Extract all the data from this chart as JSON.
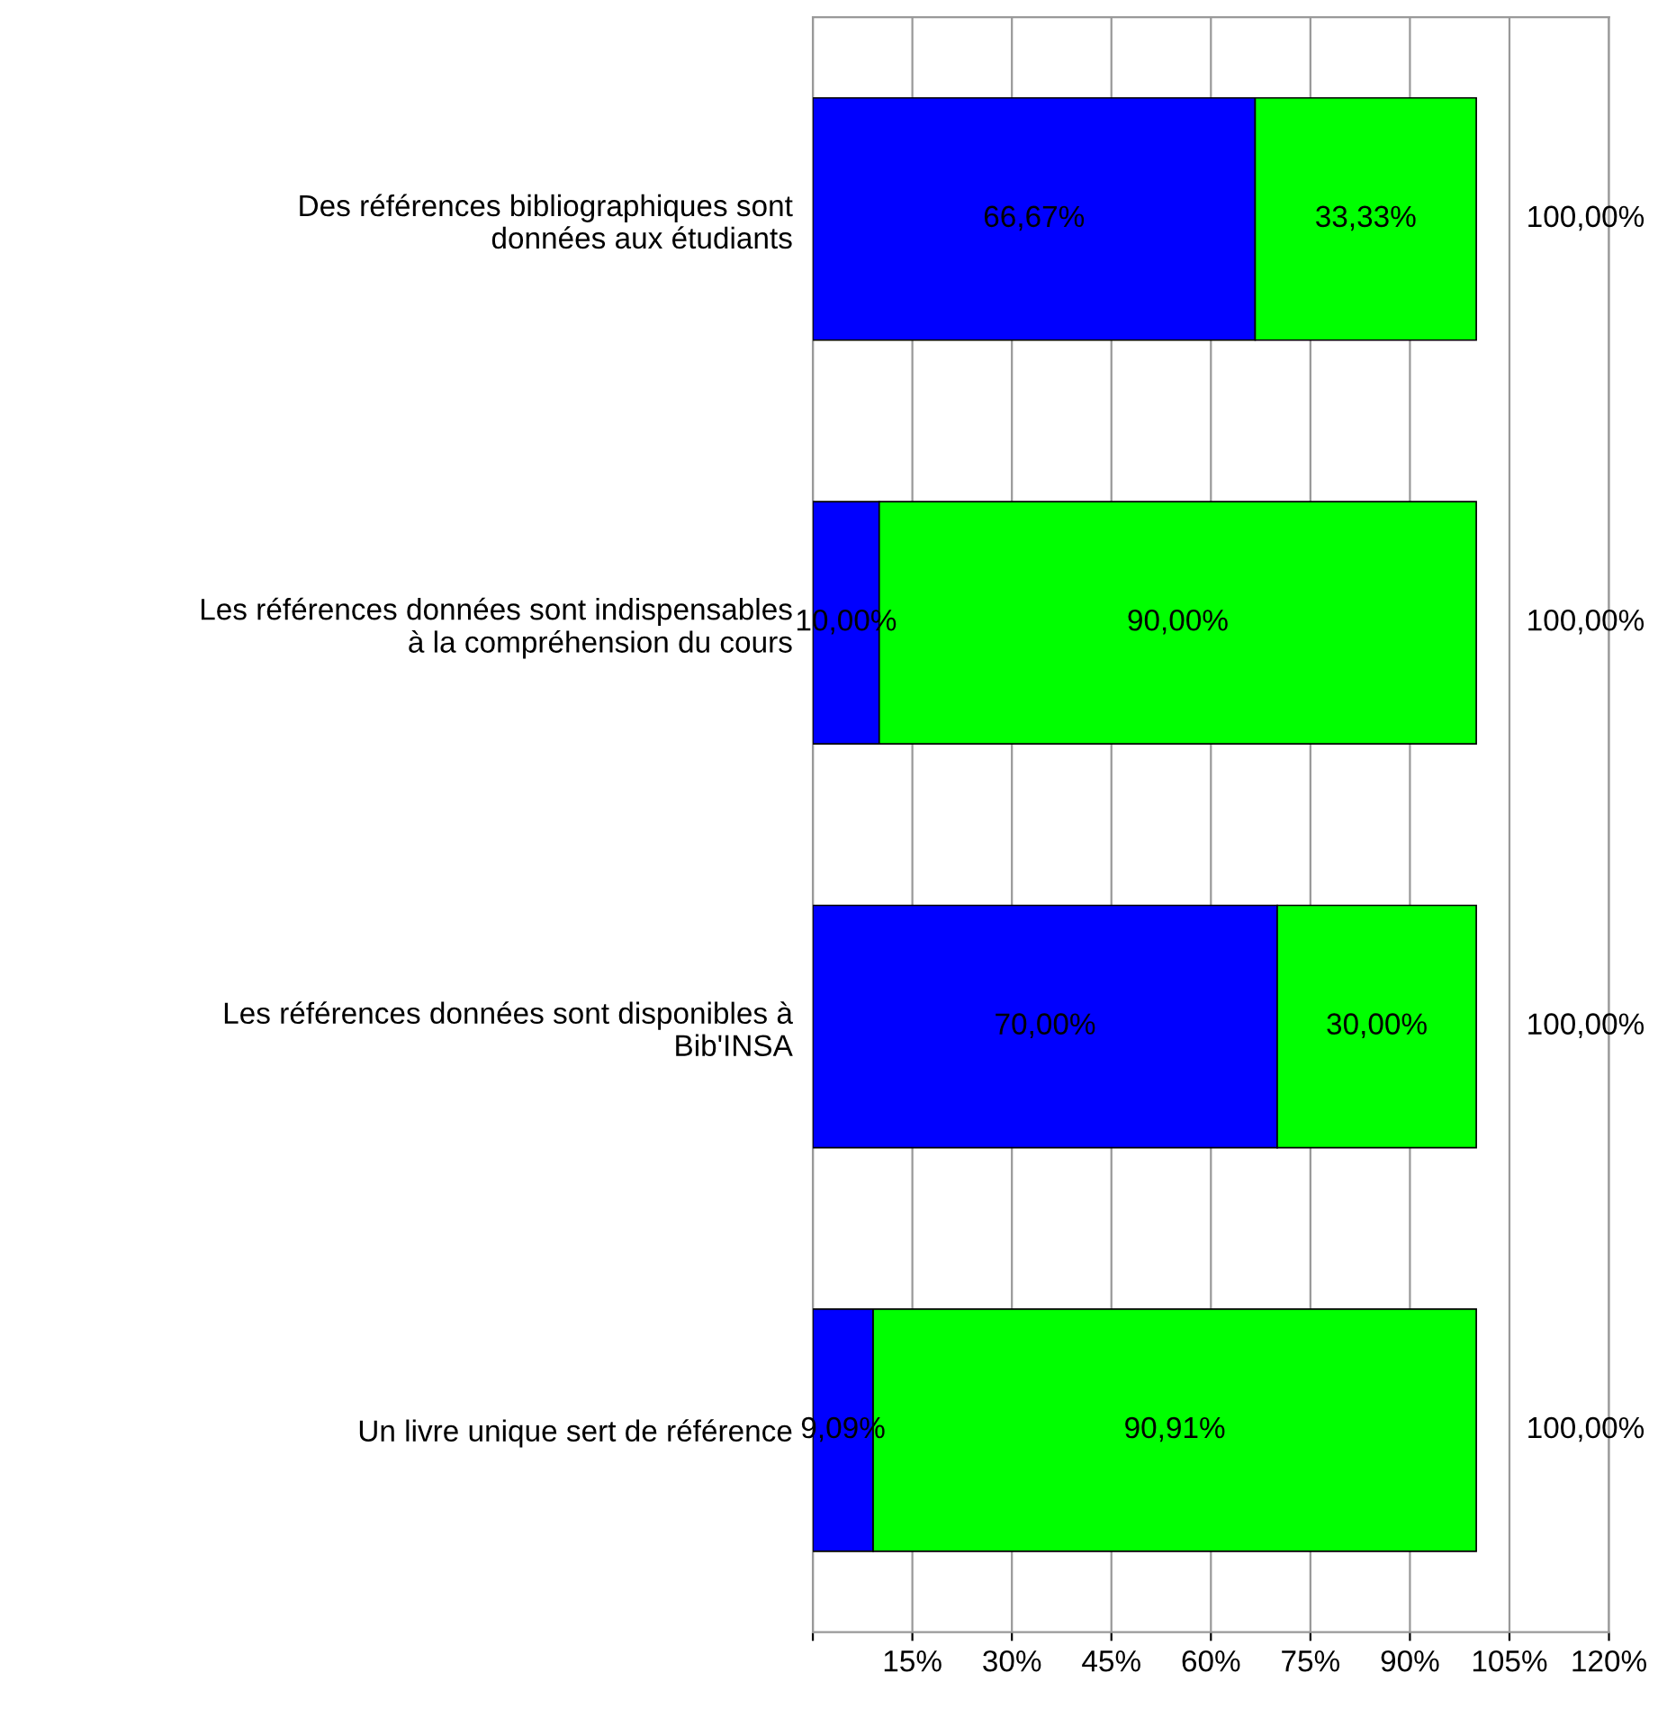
{
  "chart_data": {
    "type": "bar",
    "orientation": "horizontal",
    "stacked": true,
    "categories": [
      "Des références bibliographiques sont\ndonnées aux étudiants",
      "Les références données sont indispensables\nà la compréhension du cours",
      "Les références données sont disponibles à\nBib'INSA",
      "Un livre unique sert de référence"
    ],
    "series": [
      {
        "color": "#0000ff",
        "values": [
          66.67,
          10.0,
          70.0,
          9.09
        ],
        "value_labels": [
          "66,67%",
          "10,00%",
          "70,00%",
          "9,09%"
        ]
      },
      {
        "color": "#00ff00",
        "values": [
          33.33,
          90.0,
          30.0,
          90.91
        ],
        "value_labels": [
          "33,33%",
          "90,00%",
          "30,00%",
          "90,91%"
        ]
      }
    ],
    "totals": [
      "100,00%",
      "100,00%",
      "100,00%",
      "100,00%"
    ],
    "xlim": [
      0,
      120
    ],
    "xticks": [
      {
        "value": 0,
        "label": null
      },
      {
        "value": 15,
        "label": "15%"
      },
      {
        "value": 30,
        "label": "30%"
      },
      {
        "value": 45,
        "label": "45%"
      },
      {
        "value": 60,
        "label": "60%"
      },
      {
        "value": 75,
        "label": "75%"
      },
      {
        "value": 90,
        "label": "90%"
      },
      {
        "value": 105,
        "label": "105%"
      },
      {
        "value": 120,
        "label": "120%"
      }
    ],
    "grid": "x"
  }
}
